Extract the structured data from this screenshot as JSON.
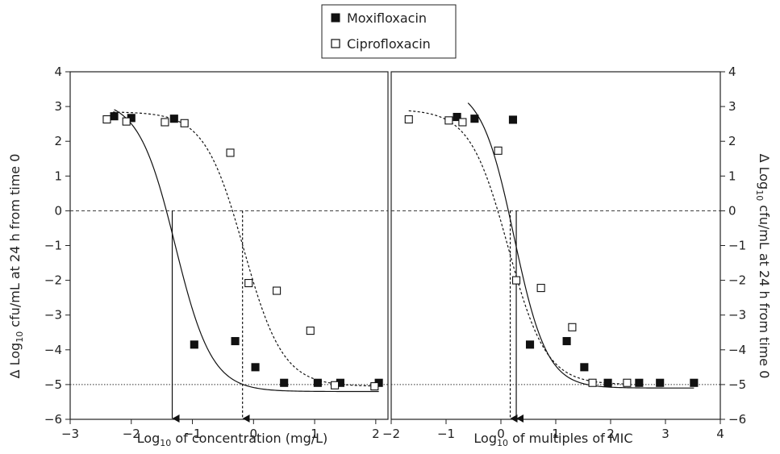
{
  "legend": [
    {
      "name": "Moxifloxacin",
      "marker": "filled-square"
    },
    {
      "name": "Ciprofloxacin",
      "marker": "open-square"
    }
  ],
  "chart_data": [
    {
      "type": "scatter",
      "panel": "left",
      "xlabel": "Log10 of concentration (mg/L)",
      "ylabel": "Δ Log10 cfu/mL at 24 h from time 0",
      "xlim": [
        -3,
        2.2
      ],
      "ylim": [
        -6,
        4
      ],
      "xticks": [
        -3,
        -2,
        -1,
        0,
        1,
        2
      ],
      "yticks": [
        -6,
        -5,
        -4,
        -3,
        -2,
        -1,
        0,
        1,
        2,
        3,
        4
      ],
      "xtick_labels": [
        "−3",
        "−2",
        "−1",
        "0",
        "1",
        "2"
      ],
      "ytick_labels": [
        "−6",
        "−5",
        "−4",
        "−3",
        "−2",
        "−1",
        "0",
        "1",
        "2",
        "3",
        "4"
      ],
      "reference_lines": [
        {
          "y": 0,
          "style": "dashed"
        },
        {
          "y": -5,
          "style": "dotted"
        }
      ],
      "series": [
        {
          "name": "Moxifloxacin",
          "marker": "filled-square",
          "x": [
            -2.28,
            -2.0,
            -1.3,
            -0.97,
            -0.3,
            0.03,
            0.5,
            1.05,
            1.42,
            2.05
          ],
          "y": [
            2.72,
            2.67,
            2.65,
            -3.85,
            -3.75,
            -4.5,
            -4.95,
            -4.95,
            -4.95,
            -4.95
          ],
          "fit": {
            "top": 3.2,
            "bottom": -5.2,
            "ec50": -1.28,
            "slope": 1.45,
            "x_range": [
              -2.28,
              2.05
            ],
            "line": "solid"
          },
          "arrow_x": -1.33
        },
        {
          "name": "Ciprofloxacin",
          "marker": "open-square",
          "x": [
            -2.4,
            -2.08,
            -1.45,
            -1.13,
            -0.38,
            -0.08,
            0.38,
            0.93,
            1.33,
            1.98
          ],
          "y": [
            2.63,
            2.57,
            2.55,
            2.52,
            1.67,
            -2.08,
            -2.3,
            -3.45,
            -5.02,
            -5.05
          ],
          "fit": {
            "top": 2.85,
            "bottom": -5.05,
            "ec50": -0.16,
            "slope": 1.35,
            "x_range": [
              -2.3,
              1.98
            ],
            "line": "dashed"
          },
          "arrow_x": -0.18
        }
      ]
    },
    {
      "type": "scatter",
      "panel": "right",
      "xlabel": "Log10 of multiples of MIC",
      "ylabel": "Δ Log10 cfu/mL at 24 h from time 0",
      "xlim": [
        -2,
        4
      ],
      "ylim": [
        -6,
        4
      ],
      "xticks": [
        -2,
        -1,
        0,
        1,
        2,
        3,
        4
      ],
      "yticks": [
        -6,
        -5,
        -4,
        -3,
        -2,
        -1,
        0,
        1,
        2,
        3,
        4
      ],
      "xtick_labels": [
        "−2",
        "−1",
        "0",
        "1",
        "2",
        "3",
        "4"
      ],
      "ytick_labels": [
        "−6",
        "−5",
        "−4",
        "−3",
        "−2",
        "−1",
        "0",
        "1",
        "2",
        "3",
        "4"
      ],
      "reference_lines": [
        {
          "y": 0,
          "style": "dashed"
        },
        {
          "y": -5,
          "style": "dotted"
        }
      ],
      "series": [
        {
          "name": "Moxifloxacin",
          "marker": "filled-square",
          "x": [
            -0.8,
            -0.48,
            0.22,
            0.53,
            1.2,
            1.52,
            1.95,
            2.52,
            2.9,
            3.52
          ],
          "y": [
            2.7,
            2.65,
            2.62,
            -3.85,
            -3.75,
            -4.5,
            -4.95,
            -4.95,
            -4.95,
            -4.95
          ],
          "fit": {
            "top": 3.6,
            "bottom": -5.1,
            "ec50": 0.24,
            "slope": 1.45,
            "x_range": [
              -0.6,
              3.52
            ],
            "line": "solid"
          },
          "arrow_x": 0.28
        },
        {
          "name": "Ciprofloxacin",
          "marker": "open-square",
          "x": [
            -1.68,
            -0.95,
            -0.7,
            -0.05,
            0.28,
            0.73,
            1.3,
            1.67,
            2.3
          ],
          "y": [
            2.63,
            2.6,
            2.55,
            1.73,
            -2.0,
            -2.22,
            -3.35,
            -4.95,
            -4.95
          ],
          "fit": {
            "top": 2.92,
            "bottom": -5.0,
            "ec50": 0.13,
            "slope": 1.25,
            "x_range": [
              -1.68,
              2.3
            ],
            "line": "dashed"
          },
          "arrow_x": 0.17
        }
      ]
    }
  ]
}
